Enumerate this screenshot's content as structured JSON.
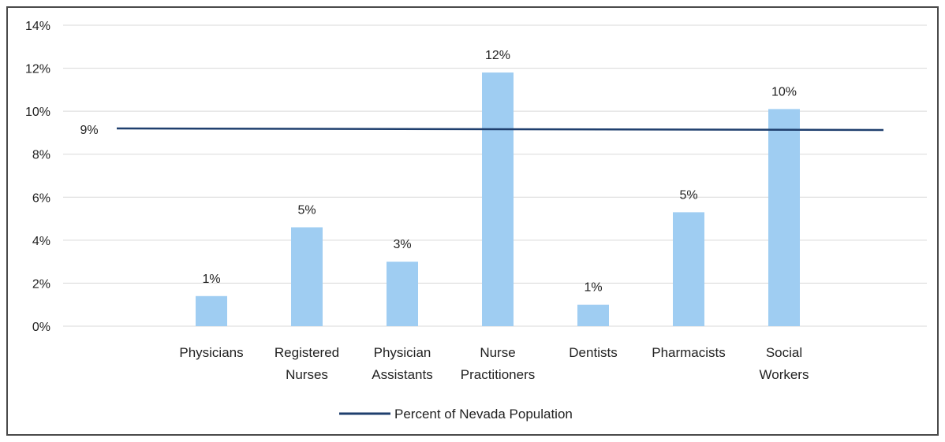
{
  "chart_data": {
    "type": "bar",
    "title": "",
    "xlabel": "",
    "ylabel": "",
    "ylim": [
      0,
      14
    ],
    "y_ticks": [
      0,
      2,
      4,
      6,
      8,
      10,
      12,
      14
    ],
    "y_tick_format": "percent",
    "grid": true,
    "categories": [
      [
        "Physicians"
      ],
      [
        "Registered",
        "Nurses"
      ],
      [
        "Physician",
        "Assistants"
      ],
      [
        "Nurse",
        "Practitioners"
      ],
      [
        "Dentists"
      ],
      [
        "Pharmacists"
      ],
      [
        "Social",
        "Workers"
      ]
    ],
    "values": [
      1.4,
      4.6,
      3.0,
      11.8,
      1.0,
      5.3,
      10.1
    ],
    "data_labels": [
      "1%",
      "5%",
      "3%",
      "12%",
      "1%",
      "5%",
      "10%"
    ],
    "bar_color": "#9fcdf2",
    "reference_line": {
      "name": "Percent of Nevada Population",
      "value": 9.2,
      "label": "9%",
      "color": "#1f3f6e"
    },
    "legend": {
      "position": "bottom",
      "entries": [
        "Percent of Nevada Population"
      ]
    }
  }
}
